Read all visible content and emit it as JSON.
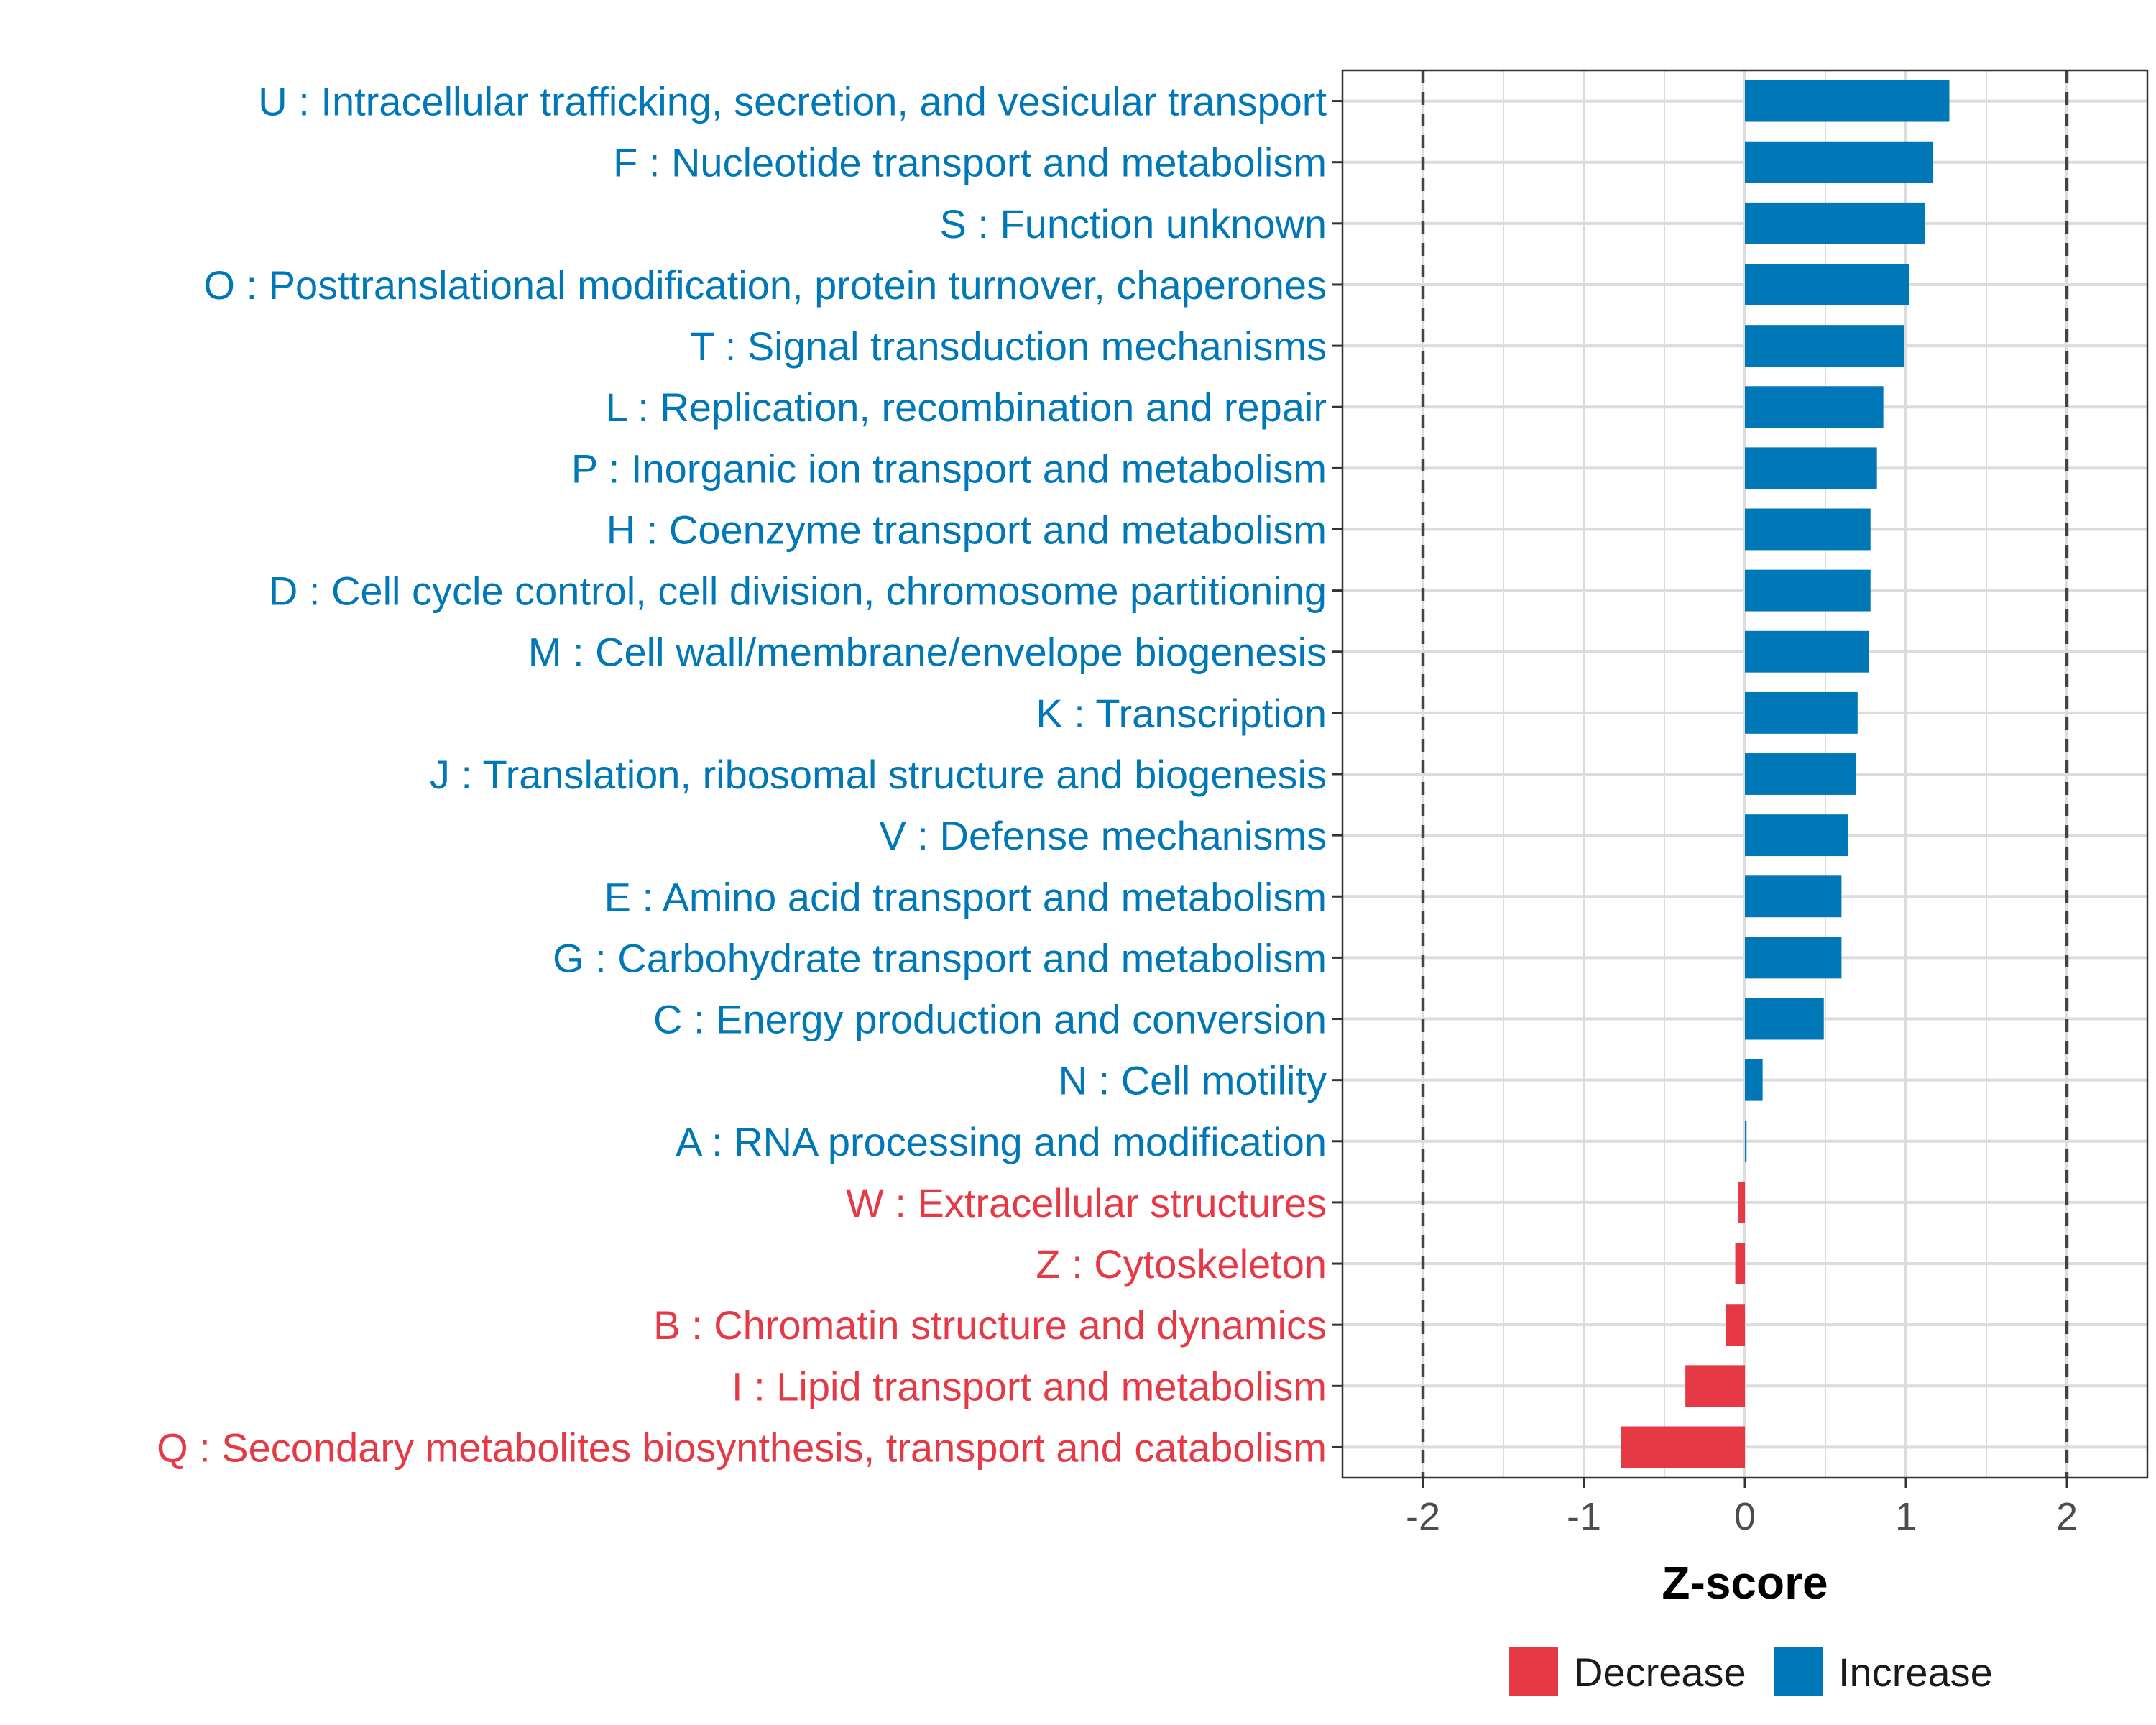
{
  "chart_data": {
    "type": "bar",
    "orientation": "horizontal",
    "xlabel": "Z-score",
    "xlim": [
      -2.5,
      2.5
    ],
    "xticks": [
      -2,
      -1,
      0,
      1,
      2
    ],
    "xtick_labels": [
      "-2",
      "-1",
      "0",
      "1",
      "2"
    ],
    "reference_lines": [
      -2,
      2
    ],
    "grid": true,
    "legend": {
      "position": "bottom",
      "entries": [
        {
          "label": "Decrease",
          "color": "#e63946"
        },
        {
          "label": "Increase",
          "color": "#0077b6"
        }
      ]
    },
    "colors": {
      "Increase": "#0077b6",
      "Decrease": "#e63946"
    },
    "categories": [
      "U : Intracellular trafficking, secretion, and vesicular transport",
      "F : Nucleotide transport and metabolism",
      "S : Function unknown",
      "O : Posttranslational modification, protein turnover, chaperones",
      "T : Signal transduction mechanisms",
      "L : Replication, recombination and repair",
      "P : Inorganic ion transport and metabolism",
      "H : Coenzyme transport and metabolism",
      "D : Cell cycle control, cell division, chromosome partitioning",
      "M : Cell wall/membrane/envelope biogenesis",
      "K : Transcription",
      "J : Translation, ribosomal structure and biogenesis",
      "V : Defense mechanisms",
      "E : Amino acid transport and metabolism",
      "G : Carbohydrate transport and metabolism",
      "C : Energy production and conversion",
      "N : Cell motility",
      "A : RNA processing and modification",
      "W : Extracellular structures",
      "Z : Cytoskeleton",
      "B : Chromatin structure and dynamics",
      "I : Lipid transport and metabolism",
      "Q : Secondary metabolites biosynthesis, transport and catabolism"
    ],
    "values": [
      1.27,
      1.17,
      1.12,
      1.02,
      0.99,
      0.86,
      0.82,
      0.78,
      0.78,
      0.77,
      0.7,
      0.69,
      0.64,
      0.6,
      0.6,
      0.49,
      0.11,
      0.01,
      -0.04,
      -0.06,
      -0.12,
      -0.37,
      -0.77
    ],
    "groups": [
      "Increase",
      "Increase",
      "Increase",
      "Increase",
      "Increase",
      "Increase",
      "Increase",
      "Increase",
      "Increase",
      "Increase",
      "Increase",
      "Increase",
      "Increase",
      "Increase",
      "Increase",
      "Increase",
      "Increase",
      "Increase",
      "Decrease",
      "Decrease",
      "Decrease",
      "Decrease",
      "Decrease"
    ]
  }
}
